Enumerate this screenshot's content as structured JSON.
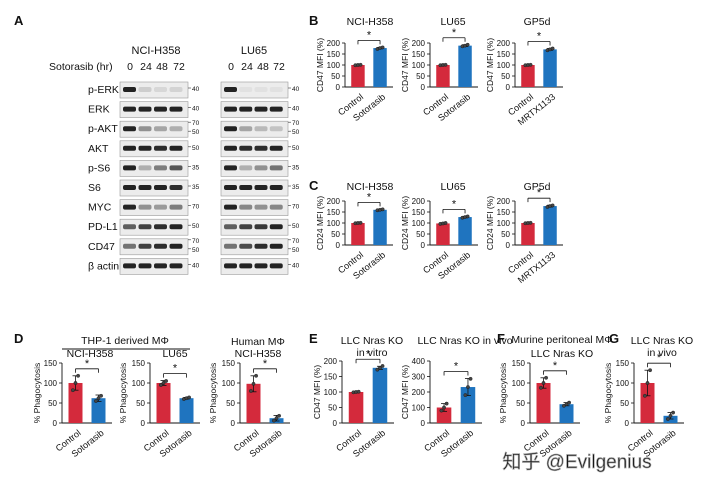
{
  "panel_letters": [
    "A",
    "B",
    "C",
    "D",
    "E",
    "F",
    "G"
  ],
  "blot": {
    "timepoint_axis_label": "Sotorasib (hr)",
    "cell_lines": [
      "NCI-H358",
      "LU65"
    ],
    "timepoints": [
      "0",
      "24",
      "48",
      "72"
    ],
    "rows": [
      {
        "label": "p-ERK",
        "markers": [
          "40"
        ]
      },
      {
        "label": "ERK",
        "markers": [
          "40"
        ]
      },
      {
        "label": "p-AKT",
        "markers": [
          "70",
          "50"
        ]
      },
      {
        "label": "AKT",
        "markers": [
          "50"
        ]
      },
      {
        "label": "p-S6",
        "markers": [
          "35"
        ]
      },
      {
        "label": "S6",
        "markers": [
          "35"
        ]
      },
      {
        "label": "MYC",
        "markers": [
          "70"
        ]
      },
      {
        "label": "PD-L1",
        "markers": [
          "50"
        ]
      },
      {
        "label": "CD47",
        "markers": [
          "70",
          "50"
        ]
      },
      {
        "label": "β actin",
        "markers": [
          "40"
        ]
      }
    ]
  },
  "subheaders": {
    "thp1_derived": "THP-1 derived MΦ",
    "human_mphi": "Human MΦ",
    "murine_peritoneal": "Murine peritoneal MΦ"
  },
  "significance_mark": "*",
  "watermark": "知乎 @Evilgenius",
  "colors": {
    "control": "#d42a3c",
    "treated": "#1f74bf"
  },
  "chart_data": [
    {
      "id": "B1",
      "type": "bar",
      "title": [
        "NCI-H358"
      ],
      "ylabel": "CD47 MFI (%)",
      "ylim": [
        0,
        200
      ],
      "yticks": [
        "0",
        "50",
        "100",
        "150",
        "200"
      ],
      "categories": [
        "Control",
        "Sotorasib"
      ],
      "values": [
        100,
        177
      ],
      "errors": [
        1.5,
        3
      ],
      "points": [
        [
          99,
          100,
          101
        ],
        [
          173,
          177,
          180
        ]
      ]
    },
    {
      "id": "B2",
      "type": "bar",
      "title": [
        "LU65"
      ],
      "ylabel": "CD47 MFI (%)",
      "ylim": [
        0,
        200
      ],
      "yticks": [
        "0",
        "50",
        "100",
        "150",
        "200"
      ],
      "categories": [
        "Control",
        "Sotorasib"
      ],
      "values": [
        100,
        188
      ],
      "errors": [
        1.5,
        4
      ],
      "points": [
        [
          99,
          100,
          101
        ],
        [
          185,
          188,
          192
        ]
      ]
    },
    {
      "id": "B3",
      "type": "bar",
      "title": [
        "GP5d"
      ],
      "ylabel": "CD47 MFI (%)",
      "ylim": [
        0,
        200
      ],
      "yticks": [
        "0",
        "50",
        "100",
        "150",
        "200"
      ],
      "categories": [
        "Control",
        "MRTX1133"
      ],
      "values": [
        100,
        171
      ],
      "errors": [
        1.5,
        4
      ],
      "points": [
        [
          99,
          100,
          101
        ],
        [
          167,
          171,
          175
        ]
      ]
    },
    {
      "id": "C1",
      "type": "bar",
      "title": [
        "NCI-H358"
      ],
      "ylabel": "CD24 MFI (%)",
      "ylim": [
        0,
        200
      ],
      "yticks": [
        "0",
        "50",
        "100",
        "150",
        "200"
      ],
      "categories": [
        "Control",
        "Sotorasib"
      ],
      "values": [
        100,
        160
      ],
      "errors": [
        1.5,
        2
      ],
      "points": [
        [
          99,
          100,
          101
        ],
        [
          158,
          160,
          162
        ]
      ]
    },
    {
      "id": "C2",
      "type": "bar",
      "title": [
        "LU65"
      ],
      "ylabel": "CD24 MFI (%)",
      "ylim": [
        0,
        200
      ],
      "yticks": [
        "0",
        "50",
        "100",
        "150",
        "200"
      ],
      "categories": [
        "Control",
        "Sotorasib"
      ],
      "values": [
        98,
        127
      ],
      "errors": [
        2,
        3
      ],
      "points": [
        [
          96,
          98,
          100
        ],
        [
          124,
          127,
          130
        ]
      ]
    },
    {
      "id": "C3",
      "type": "bar",
      "title": [
        "GP5d"
      ],
      "ylabel": "CD24 MFI (%)",
      "ylim": [
        0,
        200
      ],
      "yticks": [
        "0",
        "50",
        "100",
        "150",
        "200"
      ],
      "categories": [
        "Control",
        "MRTX1133"
      ],
      "values": [
        100,
        177
      ],
      "errors": [
        1.5,
        4
      ],
      "points": [
        [
          99,
          100,
          101
        ],
        [
          173,
          177,
          180
        ]
      ]
    },
    {
      "id": "D1",
      "type": "bar",
      "title": [
        "NCI-H358"
      ],
      "ylabel": "% Phagocytosis",
      "ylim": [
        0,
        150
      ],
      "yticks": [
        "0",
        "50",
        "100",
        "150"
      ],
      "categories": [
        "Control",
        "Sotorasib"
      ],
      "values": [
        100,
        62
      ],
      "errors": [
        18,
        8
      ],
      "points": [
        [
          82,
          100,
          118
        ],
        [
          55,
          62,
          68
        ]
      ]
    },
    {
      "id": "D2",
      "type": "bar",
      "title": [
        "LU65"
      ],
      "ylabel": "% Phagocytosis",
      "ylim": [
        0,
        150
      ],
      "yticks": [
        "0",
        "50",
        "100",
        "150"
      ],
      "categories": [
        "Control",
        "Sotorasib"
      ],
      "values": [
        100,
        62
      ],
      "errors": [
        6,
        2
      ],
      "points": [
        [
          95,
          100,
          105
        ],
        [
          60,
          62,
          64
        ]
      ]
    },
    {
      "id": "D3",
      "type": "bar",
      "title": [
        "NCI-H358"
      ],
      "ylabel": "% Phagocytosis",
      "ylim": [
        0,
        150
      ],
      "yticks": [
        "0",
        "50",
        "100",
        "150"
      ],
      "categories": [
        "Control",
        "Sotorasib"
      ],
      "values": [
        98,
        12
      ],
      "errors": [
        20,
        7
      ],
      "points": [
        [
          80,
          98,
          118
        ],
        [
          6,
          12,
          18
        ]
      ]
    },
    {
      "id": "E1",
      "type": "bar",
      "title": [
        "LLC Nras KO",
        "in vitro"
      ],
      "ylabel": "CD47 MFI (%)",
      "ylim": [
        0,
        200
      ],
      "yticks": [
        "0",
        "50",
        "100",
        "150",
        "200"
      ],
      "categories": [
        "Control",
        "Sotorasib"
      ],
      "values": [
        100,
        178
      ],
      "errors": [
        1.5,
        5
      ],
      "points": [
        [
          99,
          100,
          101
        ],
        [
          172,
          178,
          184
        ]
      ]
    },
    {
      "id": "E2",
      "type": "bar",
      "title": [
        "LLC Nras KO in vivo"
      ],
      "ylabel": "CD47 MFI (%)",
      "ylim": [
        0,
        400
      ],
      "yticks": [
        "0",
        "100",
        "200",
        "300",
        "400"
      ],
      "categories": [
        "Control",
        "Sotorasib"
      ],
      "values": [
        100,
        232
      ],
      "errors": [
        25,
        55
      ],
      "points": [
        [
          80,
          100,
          125
        ],
        [
          180,
          232,
          285
        ]
      ]
    },
    {
      "id": "F1",
      "type": "bar",
      "title": [
        "LLC Nras KO"
      ],
      "ylabel": "% Phagocytosis",
      "ylim": [
        0,
        150
      ],
      "yticks": [
        "0",
        "50",
        "100",
        "150"
      ],
      "categories": [
        "Control",
        "Sotorasib"
      ],
      "values": [
        100,
        47
      ],
      "errors": [
        13,
        4
      ],
      "points": [
        [
          88,
          100,
          113
        ],
        [
          43,
          47,
          51
        ]
      ]
    },
    {
      "id": "G1",
      "type": "bar",
      "title": [
        "LLC Nras KO",
        "in vivo"
      ],
      "ylabel": "% Phagocytosis",
      "ylim": [
        0,
        150
      ],
      "yticks": [
        "0",
        "50",
        "100",
        "150"
      ],
      "categories": [
        "Control",
        "Sotorasib"
      ],
      "values": [
        100,
        18
      ],
      "errors": [
        32,
        8
      ],
      "points": [
        [
          68,
          100,
          132
        ],
        [
          10,
          18,
          26
        ]
      ]
    }
  ]
}
